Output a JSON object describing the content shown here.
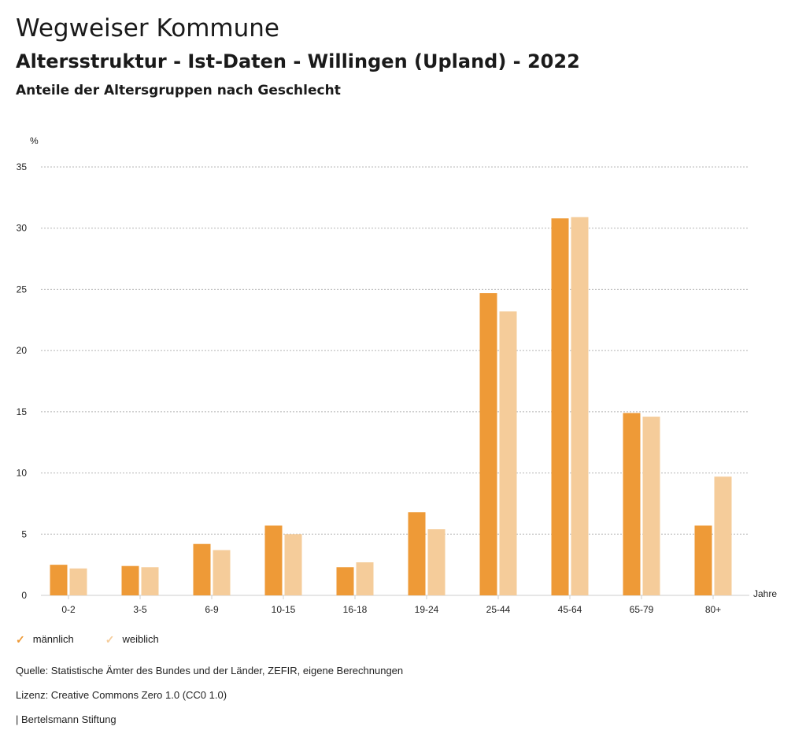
{
  "header": {
    "title": "Wegweiser Kommune",
    "subtitle": "Altersstruktur - Ist-Daten - Willingen (Upland) - 2022",
    "caption": "Anteile der Altersgruppen nach Geschlecht"
  },
  "colors": {
    "maennlich": "#ee9a37",
    "weiblich": "#f5cc9a",
    "grid": "#b5b5b5"
  },
  "chart_data": {
    "type": "bar",
    "ylabel": "%",
    "xlabel": "Jahre",
    "ylim": [
      0,
      35
    ],
    "yticks": [
      0,
      5,
      10,
      15,
      20,
      25,
      30,
      35
    ],
    "grid": true,
    "legend_position": "bottom-left",
    "categories": [
      "0-2",
      "3-5",
      "6-9",
      "10-15",
      "16-18",
      "19-24",
      "25-44",
      "45-64",
      "65-79",
      "80+"
    ],
    "series": [
      {
        "name": "männlich",
        "values": [
          2.5,
          2.4,
          4.2,
          5.7,
          2.3,
          6.8,
          24.7,
          30.8,
          14.9,
          5.7
        ]
      },
      {
        "name": "weiblich",
        "values": [
          2.2,
          2.3,
          3.7,
          5.0,
          2.7,
          5.4,
          23.2,
          30.9,
          14.6,
          9.7
        ]
      }
    ]
  },
  "legend": {
    "maennlich": "männlich",
    "weiblich": "weiblich",
    "check_glyph": "✓"
  },
  "footer": {
    "source": "Quelle: Statistische Ämter des Bundes und der Länder, ZEFIR, eigene Berechnungen",
    "license": "Lizenz: Creative Commons Zero 1.0 (CC0 1.0)",
    "publisher": "| Bertelsmann Stiftung"
  }
}
